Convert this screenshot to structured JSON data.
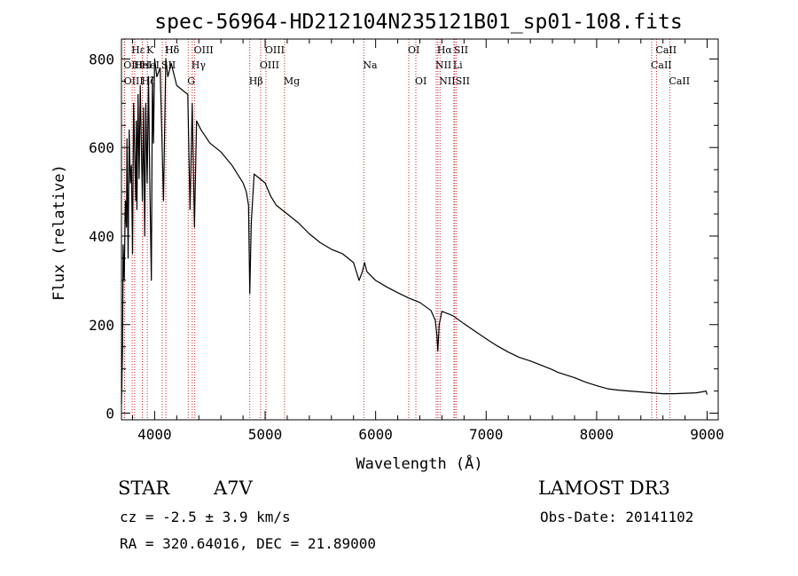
{
  "chart_data": {
    "type": "line",
    "title": "spec-56964-HD212104N235121B01_sp01-108.fits",
    "xlabel": "Wavelength (Å)",
    "ylabel": "Flux (relative)",
    "xlim": [
      3700,
      9100
    ],
    "ylim": [
      -15,
      845
    ],
    "xticks": [
      4000,
      5000,
      6000,
      7000,
      8000,
      9000
    ],
    "yticks": [
      0,
      200,
      400,
      600,
      800
    ],
    "line_color": "#000000",
    "marker_color": "#cc2222",
    "series": [
      {
        "name": "flux",
        "x": [
          3700,
          3710,
          3715,
          3725,
          3735,
          3745,
          3750,
          3760,
          3770,
          3780,
          3790,
          3800,
          3810,
          3820,
          3830,
          3835,
          3840,
          3850,
          3860,
          3870,
          3880,
          3889,
          3900,
          3910,
          3920,
          3933,
          3945,
          3955,
          3970,
          3980,
          3990,
          4000,
          4020,
          4050,
          4080,
          4101,
          4120,
          4150,
          4200,
          4250,
          4300,
          4320,
          4340,
          4360,
          4380,
          4420,
          4500,
          4600,
          4700,
          4800,
          4830,
          4850,
          4861,
          4875,
          4900,
          4950,
          5000,
          5050,
          5100,
          5150,
          5200,
          5300,
          5400,
          5500,
          5600,
          5700,
          5800,
          5850,
          5880,
          5890,
          5900,
          5920,
          6000,
          6100,
          6200,
          6300,
          6400,
          6500,
          6540,
          6555,
          6563,
          6575,
          6600,
          6700,
          6800,
          6900,
          7000,
          7100,
          7200,
          7300,
          7400,
          7500,
          7600,
          7650,
          7700,
          7800,
          7900,
          8000,
          8100,
          8200,
          8300,
          8400,
          8500,
          8600,
          8700,
          8800,
          8900,
          8950,
          8990,
          9000
        ],
        "y": [
          20,
          150,
          380,
          300,
          480,
          420,
          620,
          350,
          640,
          520,
          560,
          360,
          700,
          580,
          480,
          660,
          460,
          720,
          530,
          740,
          610,
          480,
          690,
          400,
          700,
          520,
          760,
          540,
          300,
          760,
          610,
          800,
          760,
          780,
          480,
          800,
          760,
          790,
          740,
          730,
          720,
          460,
          700,
          420,
          660,
          640,
          610,
          590,
          560,
          520,
          500,
          470,
          270,
          430,
          540,
          530,
          520,
          490,
          470,
          460,
          450,
          430,
          405,
          385,
          370,
          360,
          340,
          300,
          320,
          330,
          340,
          320,
          300,
          285,
          272,
          260,
          250,
          232,
          210,
          175,
          140,
          200,
          230,
          220,
          202,
          185,
          168,
          152,
          138,
          126,
          118,
          108,
          98,
          92,
          88,
          80,
          70,
          62,
          55,
          52,
          50,
          48,
          46,
          44,
          44,
          45,
          46,
          48,
          50,
          42
        ]
      }
    ],
    "lines": [
      {
        "label": "Hδ",
        "x": 4102,
        "row": 0
      },
      {
        "label": "OIII",
        "x": 3726,
        "row": 1
      },
      {
        "label": "OIII",
        "x": 3729,
        "row": 2
      },
      {
        "label": "Hε",
        "x": 3797,
        "row": 0
      },
      {
        "label": "HeI",
        "x": 3820,
        "row": 1
      },
      {
        "label": "Hζ",
        "x": 3889,
        "row": 2
      },
      {
        "label": "K",
        "x": 3934,
        "row": 0
      },
      {
        "label": "HeI",
        "x": 3889,
        "row": 1
      },
      {
        "label": "SII",
        "x": 4069,
        "row": 1
      },
      {
        "label": "Hδ",
        "x": 4101,
        "row": 0
      },
      {
        "label": "OIII",
        "x": 4363,
        "row": 0
      },
      {
        "label": "Hγ",
        "x": 4340,
        "row": 1
      },
      {
        "label": "G",
        "x": 4304,
        "row": 2
      },
      {
        "label": "Hβ",
        "x": 4861,
        "row": 2
      },
      {
        "label": "OIII",
        "x": 5007,
        "row": 0
      },
      {
        "label": "OIII",
        "x": 4959,
        "row": 1
      },
      {
        "label": "Mg",
        "x": 5175,
        "row": 2
      },
      {
        "label": "Na",
        "x": 5893,
        "row": 1
      },
      {
        "label": "OI",
        "x": 6300,
        "row": 0
      },
      {
        "label": "OI",
        "x": 6364,
        "row": 2
      },
      {
        "label": "Hα",
        "x": 6563,
        "row": 0
      },
      {
        "label": "NII",
        "x": 6548,
        "row": 1
      },
      {
        "label": "NII",
        "x": 6583,
        "row": 2
      },
      {
        "label": "SII",
        "x": 6716,
        "row": 0
      },
      {
        "label": "Li",
        "x": 6708,
        "row": 1
      },
      {
        "label": "SII",
        "x": 6731,
        "row": 2
      },
      {
        "label": "CaII",
        "x": 8542,
        "row": 0
      },
      {
        "label": "CaII",
        "x": 8498,
        "row": 1
      },
      {
        "label": "CaII",
        "x": 8662,
        "row": 2
      }
    ]
  },
  "footer": {
    "object_class": "STAR",
    "subclass": "A7V",
    "survey": "LAMOST DR3",
    "cz": "cz = -2.5 ± 3.9 km/s",
    "obs_date": "Obs-Date: 20141102",
    "coords": "RA = 320.64016, DEC =  21.89000"
  }
}
